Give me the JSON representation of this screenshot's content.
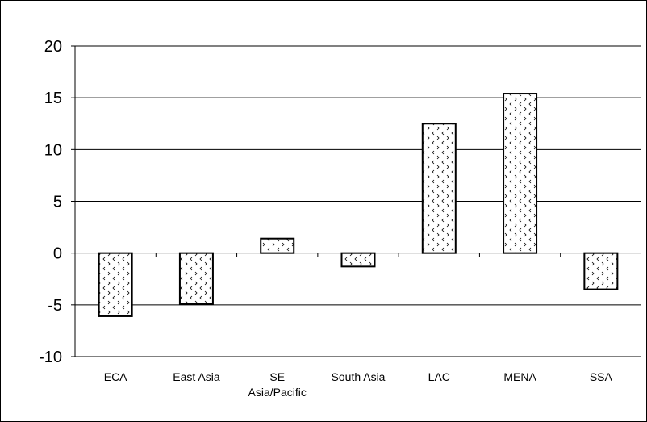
{
  "chart_data": {
    "type": "bar",
    "title": "",
    "xlabel": "",
    "ylabel": "",
    "categories": [
      [
        "ECA"
      ],
      [
        "East Asia"
      ],
      [
        "SE",
        "Asia/Pacific"
      ],
      [
        "South Asia"
      ],
      [
        "LAC"
      ],
      [
        "MENA"
      ],
      [
        "SSA"
      ]
    ],
    "values": [
      -6.1,
      -4.9,
      1.4,
      -1.3,
      12.5,
      15.4,
      -3.5
    ],
    "ylim": [
      -10,
      20
    ],
    "yticks": [
      "20",
      "15",
      "10",
      "5",
      "0",
      "-5",
      "-10"
    ],
    "grid": "horizontal",
    "legend": "none",
    "bar_fill": "#ffffff",
    "bar_stroke": "#000000",
    "gridline_color": "#000000"
  }
}
